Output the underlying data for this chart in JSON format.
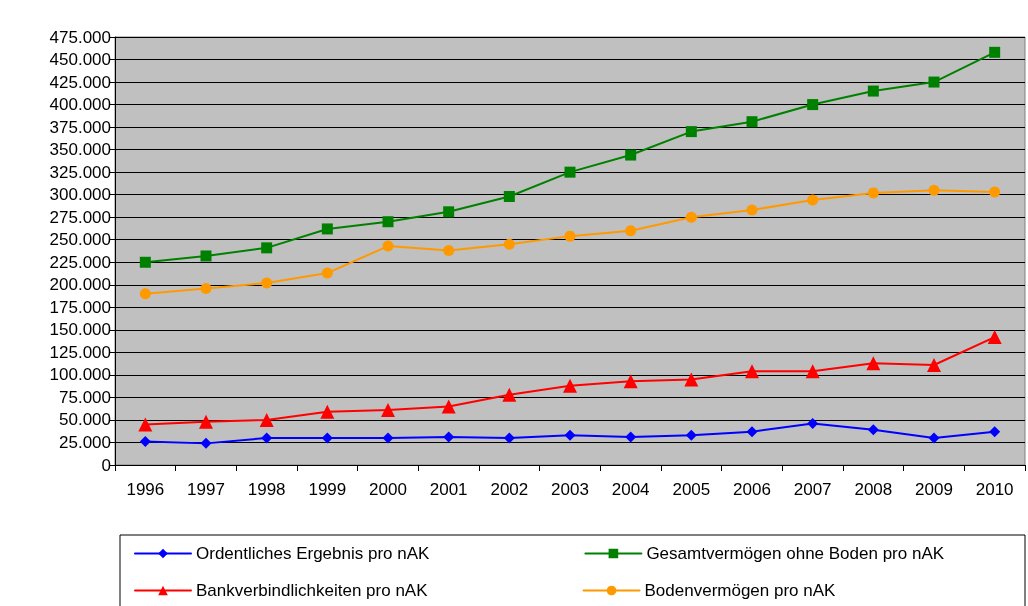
{
  "chart_data": {
    "type": "line",
    "categories": [
      "1996",
      "1997",
      "1998",
      "1999",
      "2000",
      "2001",
      "2002",
      "2003",
      "2004",
      "2005",
      "2006",
      "2007",
      "2008",
      "2009",
      "2010"
    ],
    "series": [
      {
        "name": "Ordentliches Ergebnis pro nAK",
        "color": "#0000ff",
        "marker": "diamond",
        "values": [
          26000,
          24000,
          30000,
          30000,
          30000,
          31000,
          30000,
          33000,
          31000,
          33000,
          37000,
          46000,
          39000,
          30000,
          37000
        ]
      },
      {
        "name": "Gesamtvermögen ohne Boden pro nAK",
        "color": "#008000",
        "marker": "square",
        "values": [
          225000,
          232000,
          241000,
          262000,
          270000,
          281000,
          298000,
          325000,
          344000,
          370000,
          381000,
          400000,
          415000,
          425000,
          458000
        ]
      },
      {
        "name": "Bankverbindlichkeiten pro nAK",
        "color": "#ff0000",
        "marker": "triangle",
        "values": [
          45000,
          48000,
          50000,
          59000,
          61000,
          65000,
          78000,
          88000,
          93000,
          95000,
          104000,
          104000,
          113000,
          111000,
          142000
        ]
      },
      {
        "name": "Bodenvermögen pro nAK",
        "color": "#ff9900",
        "marker": "circle",
        "values": [
          190000,
          196000,
          202000,
          213000,
          243000,
          238000,
          245000,
          254000,
          260000,
          275000,
          283000,
          294000,
          302000,
          305000,
          303000
        ]
      }
    ],
    "ylim": [
      0,
      475000
    ],
    "yticks": [
      0,
      {
        "value": 25000,
        "label": "25.000"
      },
      {
        "value": 50000,
        "label": "50.000"
      },
      {
        "value": 75000,
        "label": "75.000"
      },
      {
        "value": 100000,
        "label": "100.000"
      },
      {
        "value": 125000,
        "label": "125.000"
      },
      {
        "value": 150000,
        "label": "150.000"
      },
      {
        "value": 175000,
        "label": "175.000"
      },
      {
        "value": 200000,
        "label": "200.000"
      },
      {
        "value": 225000,
        "label": "225.000"
      },
      {
        "value": 250000,
        "label": "250.000"
      },
      {
        "value": 275000,
        "label": "275.000"
      },
      {
        "value": 300000,
        "label": "300.000"
      },
      {
        "value": 325000,
        "label": "325.000"
      },
      {
        "value": 350000,
        "label": "350.000"
      },
      {
        "value": 375000,
        "label": "375.000"
      },
      {
        "value": 400000,
        "label": "400.000"
      },
      {
        "value": 425000,
        "label": "425.000"
      },
      {
        "value": 450000,
        "label": "450.000"
      },
      {
        "value": 475000,
        "label": "475.000"
      }
    ],
    "grid": "y",
    "legend": "bottom",
    "line_style": "solid"
  }
}
